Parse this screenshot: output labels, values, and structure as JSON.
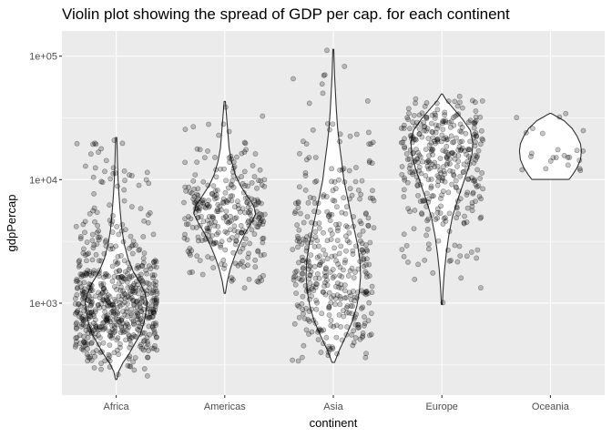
{
  "chart_data": {
    "type": "violin",
    "title": "Violin plot showing the spread of GDP per cap. for each continent",
    "xlabel": "continent",
    "ylabel": "gdpPercap",
    "y_scale": "log10",
    "ylim": [
      180,
      160000
    ],
    "y_ticks": [
      {
        "value": 1000,
        "label": "1e+03"
      },
      {
        "value": 10000,
        "label": "1e+04"
      },
      {
        "value": 100000,
        "label": "1e+05"
      }
    ],
    "categories": [
      "Africa",
      "Americas",
      "Asia",
      "Europe",
      "Oceania"
    ],
    "grid": true,
    "legend": "none",
    "points_overlay": "jittered, semi-transparent",
    "colors": {
      "panel": "#ebebeb",
      "grid_major": "#ffffff",
      "violin_fill": "#ffffff",
      "violin_stroke": "#333333",
      "point_fill": "#000000"
    },
    "series": [
      {
        "category": "Africa",
        "n_points": 624,
        "min": 241,
        "max": 21951,
        "violin_profile": [
          [
            241,
            0.02
          ],
          [
            280,
            0.08
          ],
          [
            330,
            0.22
          ],
          [
            390,
            0.42
          ],
          [
            470,
            0.6
          ],
          [
            560,
            0.78
          ],
          [
            700,
            0.9
          ],
          [
            850,
            0.96
          ],
          [
            1000,
            1.0
          ],
          [
            1200,
            0.93
          ],
          [
            1450,
            0.78
          ],
          [
            1800,
            0.55
          ],
          [
            2300,
            0.38
          ],
          [
            3000,
            0.26
          ],
          [
            4000,
            0.18
          ],
          [
            5500,
            0.13
          ],
          [
            7500,
            0.09
          ],
          [
            10000,
            0.06
          ],
          [
            14000,
            0.04
          ],
          [
            21951,
            0.02
          ]
        ]
      },
      {
        "category": "Americas",
        "n_points": 300,
        "min": 1202,
        "max": 42952,
        "violin_profile": [
          [
            1202,
            0.02
          ],
          [
            1500,
            0.08
          ],
          [
            1900,
            0.18
          ],
          [
            2400,
            0.32
          ],
          [
            3000,
            0.48
          ],
          [
            3700,
            0.66
          ],
          [
            4500,
            0.86
          ],
          [
            5300,
            1.0
          ],
          [
            6200,
            0.93
          ],
          [
            7400,
            0.72
          ],
          [
            9000,
            0.5
          ],
          [
            11000,
            0.34
          ],
          [
            14000,
            0.22
          ],
          [
            18000,
            0.14
          ],
          [
            24000,
            0.1
          ],
          [
            32000,
            0.06
          ],
          [
            42952,
            0.02
          ]
        ]
      },
      {
        "category": "Asia",
        "n_points": 396,
        "min": 331,
        "max": 113523,
        "violin_profile": [
          [
            331,
            0.04
          ],
          [
            420,
            0.2
          ],
          [
            550,
            0.42
          ],
          [
            720,
            0.62
          ],
          [
            950,
            0.76
          ],
          [
            1250,
            0.84
          ],
          [
            1650,
            0.88
          ],
          [
            2200,
            0.86
          ],
          [
            3000,
            0.78
          ],
          [
            4000,
            0.67
          ],
          [
            5500,
            0.55
          ],
          [
            7500,
            0.44
          ],
          [
            10000,
            0.34
          ],
          [
            14000,
            0.27
          ],
          [
            19000,
            0.2
          ],
          [
            26000,
            0.14
          ],
          [
            36000,
            0.1
          ],
          [
            50000,
            0.07
          ],
          [
            70000,
            0.04
          ],
          [
            113523,
            0.015
          ]
        ]
      },
      {
        "category": "Europe",
        "n_points": 360,
        "min": 974,
        "max": 49357,
        "violin_profile": [
          [
            974,
            0.015
          ],
          [
            1300,
            0.04
          ],
          [
            1800,
            0.08
          ],
          [
            2500,
            0.14
          ],
          [
            3500,
            0.22
          ],
          [
            5000,
            0.34
          ],
          [
            7000,
            0.52
          ],
          [
            9500,
            0.7
          ],
          [
            12500,
            0.86
          ],
          [
            16000,
            0.97
          ],
          [
            20000,
            1.0
          ],
          [
            25000,
            0.92
          ],
          [
            31000,
            0.66
          ],
          [
            38000,
            0.36
          ],
          [
            44000,
            0.14
          ],
          [
            49357,
            0.02
          ]
        ]
      },
      {
        "category": "Oceania",
        "n_points": 24,
        "min": 10040,
        "max": 34435,
        "violin_profile": [
          [
            10040,
            0.6
          ],
          [
            11000,
            0.72
          ],
          [
            12500,
            0.86
          ],
          [
            14500,
            0.97
          ],
          [
            17000,
            1.0
          ],
          [
            19500,
            0.97
          ],
          [
            22500,
            0.86
          ],
          [
            26000,
            0.7
          ],
          [
            30000,
            0.44
          ],
          [
            34435,
            0.02
          ]
        ]
      }
    ]
  }
}
